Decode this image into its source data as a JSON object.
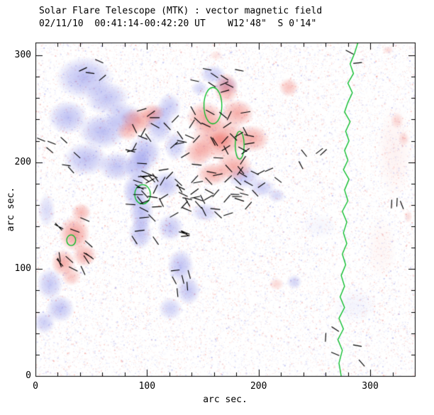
{
  "chart_data": {
    "type": "heatmap",
    "title": "Solar Flare Telescope (MTK) : vector magnetic field",
    "subtitle": "02/11/10  00:41:14-00:42:20 UT    W12'48\"  S 0'14\"",
    "xlabel": "arc sec.",
    "ylabel": "arc sec.",
    "xlim": [
      0,
      340
    ],
    "ylim": [
      0,
      312
    ],
    "x_ticks": [
      0,
      100,
      200,
      300
    ],
    "y_ticks": [
      0,
      100,
      200,
      300
    ],
    "minor_tick_step": 20,
    "grid": false,
    "colors": {
      "positive": "235,75,65",
      "negative": "95,100,225",
      "contour": "#00bb22",
      "vector": "#000000",
      "axis": "#000000",
      "background": "#ffffff"
    },
    "negative_spots": [
      [
        44,
        279,
        26,
        20,
        0.42
      ],
      [
        64,
        260,
        20,
        16,
        0.38
      ],
      [
        29,
        242,
        18,
        16,
        0.4
      ],
      [
        60,
        229,
        22,
        17,
        0.42
      ],
      [
        79,
        242,
        17,
        14,
        0.38
      ],
      [
        45,
        203,
        20,
        16,
        0.4
      ],
      [
        73,
        196,
        17,
        14,
        0.38
      ],
      [
        98,
        209,
        15,
        17,
        0.42
      ],
      [
        111,
        236,
        13,
        19,
        0.4
      ],
      [
        120,
        252,
        11,
        13,
        0.34
      ],
      [
        117,
        179,
        13,
        13,
        0.38
      ],
      [
        92,
        196,
        12,
        16,
        0.4
      ],
      [
        89,
        173,
        11,
        17,
        0.42
      ],
      [
        95,
        153,
        11,
        18,
        0.42
      ],
      [
        94,
        133,
        11,
        15,
        0.38
      ],
      [
        121,
        139,
        12,
        13,
        0.36
      ],
      [
        130,
        103,
        12,
        16,
        0.4
      ],
      [
        137,
        80,
        11,
        14,
        0.38
      ],
      [
        121,
        63,
        11,
        11,
        0.3
      ],
      [
        13,
        86,
        12,
        15,
        0.36
      ],
      [
        22,
        63,
        13,
        13,
        0.38
      ],
      [
        8,
        50,
        10,
        11,
        0.32
      ],
      [
        187,
        186,
        15,
        11,
        0.34
      ],
      [
        203,
        176,
        12,
        9,
        0.32
      ],
      [
        216,
        169,
        8,
        7,
        0.26
      ],
      [
        159,
        282,
        12,
        9,
        0.34
      ],
      [
        171,
        272,
        11,
        9,
        0.32
      ],
      [
        147,
        269,
        8,
        7,
        0.26
      ],
      [
        232,
        88,
        7,
        7,
        0.28
      ],
      [
        152,
        153,
        13,
        9,
        0.3
      ],
      [
        10,
        155,
        8,
        16,
        0.24
      ],
      [
        125,
        215,
        10,
        14,
        0.32
      ],
      [
        286,
        66,
        20,
        16,
        0.07
      ],
      [
        255,
        140,
        16,
        12,
        0.06
      ]
    ],
    "positive_spots": [
      [
        165,
        222,
        26,
        21,
        0.5
      ],
      [
        152,
        242,
        17,
        15,
        0.46
      ],
      [
        181,
        246,
        15,
        13,
        0.46
      ],
      [
        194,
        222,
        16,
        13,
        0.46
      ],
      [
        178,
        196,
        17,
        13,
        0.46
      ],
      [
        159,
        189,
        15,
        11,
        0.44
      ],
      [
        146,
        209,
        13,
        13,
        0.42
      ],
      [
        171,
        269,
        11,
        15,
        0.46
      ],
      [
        166,
        220,
        11,
        9,
        0.3
      ],
      [
        92,
        239,
        16,
        12,
        0.48
      ],
      [
        105,
        246,
        11,
        9,
        0.42
      ],
      [
        83,
        229,
        11,
        9,
        0.38
      ],
      [
        35,
        133,
        14,
        17,
        0.52
      ],
      [
        44,
        113,
        11,
        11,
        0.44
      ],
      [
        25,
        106,
        11,
        13,
        0.46
      ],
      [
        41,
        153,
        9,
        9,
        0.4
      ],
      [
        32,
        93,
        9,
        9,
        0.32
      ],
      [
        227,
        270,
        9,
        9,
        0.34
      ],
      [
        216,
        86,
        7,
        6,
        0.22
      ],
      [
        324,
        239,
        6,
        8,
        0.2
      ],
      [
        330,
        222,
        5,
        7,
        0.2
      ],
      [
        334,
        149,
        4,
        6,
        0.18
      ],
      [
        316,
        305,
        5,
        4,
        0.2
      ],
      [
        162,
        300,
        6,
        5,
        0.16
      ],
      [
        322,
        210,
        16,
        45,
        0.07
      ],
      [
        310,
        120,
        14,
        30,
        0.05
      ]
    ],
    "vector_clusters": [
      [
        142,
        200,
        115,
        100,
        95,
        0,
        65,
        9
      ],
      [
        95,
        163,
        26,
        78,
        16,
        20,
        50,
        9
      ],
      [
        35,
        122,
        34,
        58,
        14,
        55,
        45,
        9
      ],
      [
        22,
        218,
        34,
        55,
        7,
        30,
        60,
        8
      ],
      [
        163,
        276,
        44,
        22,
        9,
        0,
        35,
        8
      ],
      [
        196,
        182,
        44,
        26,
        10,
        10,
        45,
        8
      ],
      [
        127,
        105,
        28,
        68,
        10,
        40,
        50,
        8
      ],
      [
        247,
        196,
        34,
        40,
        4,
        20,
        70,
        8
      ],
      [
        277,
        30,
        34,
        36,
        5,
        30,
        70,
        8
      ],
      [
        321,
        178,
        18,
        70,
        3,
        50,
        60,
        8
      ],
      [
        292,
        296,
        26,
        14,
        2,
        0,
        45,
        8
      ],
      [
        40,
        288,
        60,
        20,
        4,
        10,
        60,
        8
      ]
    ],
    "contour_main": [
      [
        289,
        312
      ],
      [
        286,
        302
      ],
      [
        282,
        292
      ],
      [
        285,
        283
      ],
      [
        280,
        274
      ],
      [
        284,
        265
      ],
      [
        280,
        256
      ],
      [
        277,
        247
      ],
      [
        282,
        238
      ],
      [
        278,
        229
      ],
      [
        281,
        220
      ],
      [
        277,
        211
      ],
      [
        280,
        202
      ],
      [
        276,
        193
      ],
      [
        281,
        184
      ],
      [
        277,
        174
      ],
      [
        280,
        164
      ],
      [
        275,
        154
      ],
      [
        279,
        144
      ],
      [
        276,
        134
      ],
      [
        279,
        124
      ],
      [
        275,
        114
      ],
      [
        278,
        104
      ],
      [
        274,
        94
      ],
      [
        277,
        84
      ],
      [
        273,
        74
      ],
      [
        277,
        64
      ],
      [
        272,
        54
      ],
      [
        276,
        44
      ],
      [
        271,
        34
      ],
      [
        275,
        24
      ],
      [
        272,
        12
      ],
      [
        274,
        0
      ]
    ],
    "contour_loops": [
      [
        96,
        170,
        7,
        9
      ],
      [
        159,
        253,
        8,
        17
      ],
      [
        183,
        216,
        4,
        13
      ],
      [
        32,
        127,
        4,
        5
      ]
    ],
    "noise": {
      "seed": 42,
      "count": 26000
    }
  }
}
